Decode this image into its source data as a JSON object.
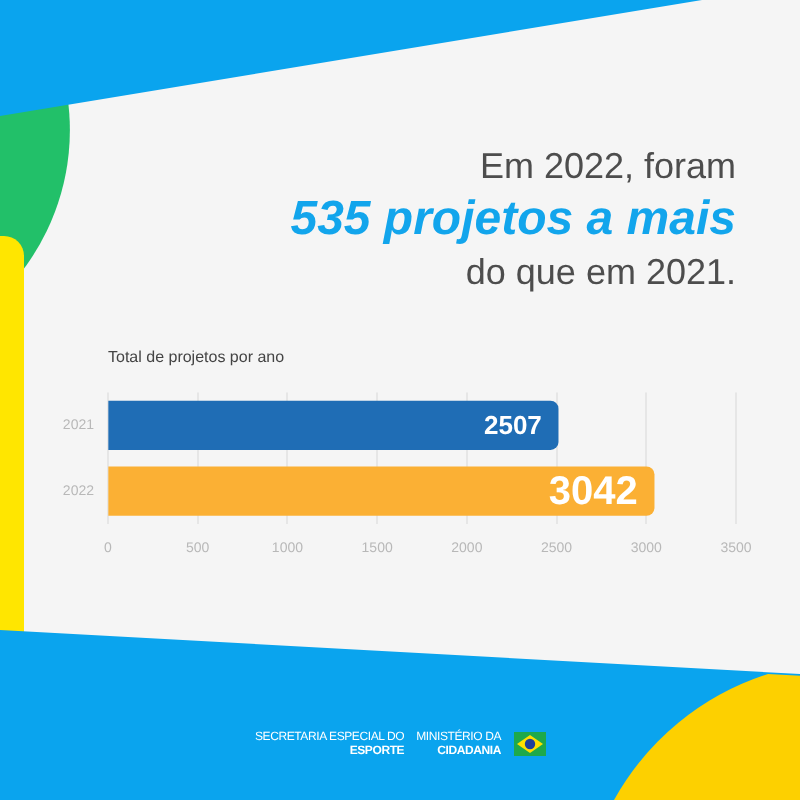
{
  "chart_data": {
    "type": "bar",
    "orientation": "horizontal",
    "title": "Em 2022, foram\n535 projetos a mais\ndo que em 2021.",
    "subtitle": "Total de projetos por ano",
    "categories": [
      "2021",
      "2022"
    ],
    "values": [
      2507,
      3042
    ],
    "colors": [
      "#1f6db5",
      "#fbb034"
    ],
    "xlim": [
      0,
      3500
    ],
    "xticks": [
      0,
      500,
      1000,
      1500,
      2000,
      2500,
      3000,
      3500
    ],
    "grid": "x",
    "data_labels": true,
    "annotations": [
      "SECRETARIA ESPECIAL DO\nESPORTE",
      "MINISTÉRIO DA\nCIDADANIA"
    ]
  }
}
